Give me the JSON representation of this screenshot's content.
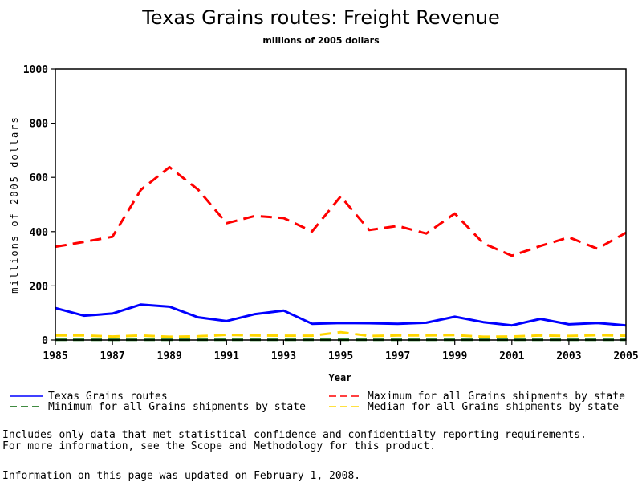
{
  "chart_data": {
    "type": "line",
    "title": "Texas Grains routes: Freight Revenue",
    "subtitle": "millions of 2005 dollars",
    "xlabel": "Year",
    "ylabel": "millions of 2005 dollars",
    "xlim": [
      1985,
      2005
    ],
    "ylim": [
      0,
      1000
    ],
    "x_ticks": [
      1985,
      1987,
      1989,
      1991,
      1993,
      1995,
      1997,
      1999,
      2001,
      2003,
      2005
    ],
    "y_ticks": [
      0,
      200,
      400,
      600,
      800,
      1000
    ],
    "grid": false,
    "legend_position": "bottom",
    "x": [
      1985,
      1986,
      1987,
      1988,
      1989,
      1990,
      1991,
      1992,
      1993,
      1994,
      1995,
      1996,
      1997,
      1998,
      1999,
      2000,
      2001,
      2002,
      2003,
      2004,
      2005
    ],
    "series": [
      {
        "name": "Texas Grains routes",
        "color": "#0000ff",
        "style": "solid",
        "values": [
          118,
          90,
          98,
          131,
          123,
          84,
          70,
          96,
          109,
          60,
          63,
          62,
          60,
          64,
          86,
          66,
          54,
          78,
          58,
          63,
          54
        ]
      },
      {
        "name": "Maximum for all Grains shipments by state",
        "color": "#ff0000",
        "style": "dashed",
        "values": [
          344,
          362,
          381,
          554,
          638,
          555,
          431,
          458,
          450,
          401,
          530,
          406,
          421,
          393,
          467,
          357,
          311,
          347,
          379,
          337,
          396
        ]
      },
      {
        "name": "Minimum for all Grains shipments by state",
        "color": "#006400",
        "style": "dashed",
        "values": [
          1,
          1,
          1,
          1,
          1,
          1,
          1,
          1,
          1,
          1,
          1,
          1,
          1,
          1,
          1,
          1,
          1,
          1,
          1,
          1,
          1
        ]
      },
      {
        "name": "Median for all Grains shipments by state",
        "color": "#ffd700",
        "style": "dashed",
        "values": [
          17,
          17,
          13,
          17,
          12,
          14,
          19,
          17,
          16,
          16,
          29,
          15,
          17,
          17,
          18,
          12,
          13,
          17,
          15,
          18,
          16
        ]
      }
    ]
  },
  "legend": [
    {
      "label": "Texas Grains routes",
      "series": 0
    },
    {
      "label": "Maximum for all Grains shipments by state",
      "series": 1
    },
    {
      "label": "Minimum for all Grains shipments by state",
      "series": 2
    },
    {
      "label": "Median for all Grains shipments by state",
      "series": 3
    }
  ],
  "footer": {
    "note_line1": "Includes only data that met statistical confidence and confidentialty reporting requirements.",
    "note_line2": "For more information, see the Scope and Methodology for this product.",
    "updated": "Information on this page was updated on February 1, 2008."
  }
}
